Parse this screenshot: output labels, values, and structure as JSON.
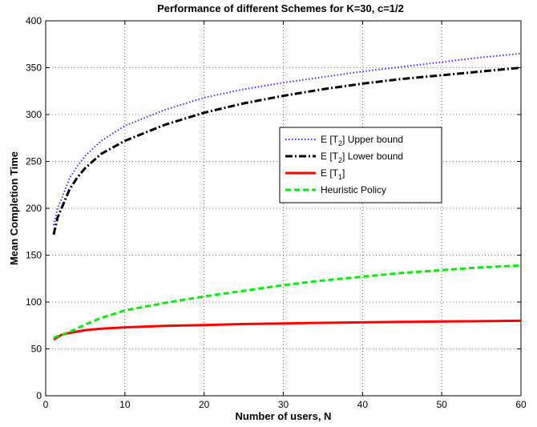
{
  "chart_data": {
    "type": "line",
    "title": "Performance of different Schemes for K=30, c=1/2",
    "xlabel": "Number of users, N",
    "ylabel": "Mean Completion Time",
    "xlim": [
      0,
      60
    ],
    "ylim": [
      0,
      400
    ],
    "xticks": [
      "0",
      "10",
      "20",
      "30",
      "40",
      "50",
      "60"
    ],
    "yticks": [
      "0",
      "50",
      "100",
      "150",
      "200",
      "250",
      "300",
      "350",
      "400"
    ],
    "grid": true,
    "legend_position": "center-right",
    "series": [
      {
        "name": "E [T2] Upper bound",
        "legend_main": "E [T",
        "legend_sub": "2",
        "legend_rest": "] Upper bound",
        "color": "#3333ff",
        "style": "dotted",
        "x": [
          1,
          1.5,
          2,
          3,
          4,
          5,
          7,
          10,
          15,
          20,
          25,
          30,
          35,
          40,
          45,
          50,
          55,
          60
        ],
        "y": [
          182,
          200,
          210,
          232,
          245,
          256,
          272,
          288,
          305,
          318,
          327,
          334,
          340,
          346,
          351,
          356,
          361,
          365
        ]
      },
      {
        "name": "E [T2] Lower bound",
        "legend_main": "E [T",
        "legend_sub": "2",
        "legend_rest": "] Lower bound",
        "color": "#000000",
        "style": "dashdot",
        "x": [
          1,
          1.5,
          2,
          3,
          4,
          5,
          7,
          10,
          15,
          20,
          25,
          30,
          35,
          40,
          45,
          50,
          55,
          60
        ],
        "y": [
          172,
          190,
          200,
          220,
          233,
          243,
          258,
          272,
          289,
          302,
          312,
          320,
          327,
          333,
          338,
          342,
          346,
          350
        ]
      },
      {
        "name": "E [T1]",
        "legend_main": "E [T",
        "legend_sub": "1",
        "legend_rest": "]",
        "color": "#ff0000",
        "style": "solid",
        "x": [
          1,
          2,
          3,
          5,
          7,
          10,
          15,
          20,
          25,
          30,
          35,
          40,
          45,
          50,
          55,
          60
        ],
        "y": [
          60,
          65,
          67,
          70,
          71.5,
          73,
          74.5,
          75.5,
          76.5,
          77.2,
          77.8,
          78.3,
          78.8,
          79.2,
          79.6,
          80
        ]
      },
      {
        "name": "Heuristic Policy",
        "legend_main": "Heuristic Policy",
        "legend_sub": "",
        "legend_rest": "",
        "color": "#00ee00",
        "style": "dashed",
        "x": [
          1,
          3,
          5,
          7,
          10,
          15,
          20,
          25,
          30,
          35,
          40,
          45,
          50,
          55,
          60
        ],
        "y": [
          62,
          68,
          76,
          83,
          91,
          99,
          106,
          112,
          118,
          123,
          127,
          131,
          134,
          137,
          139
        ]
      }
    ]
  }
}
